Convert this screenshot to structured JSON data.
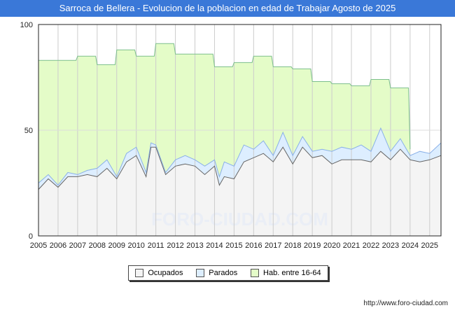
{
  "chart_data": {
    "type": "area",
    "title": "Sarroca de Bellera - Evolucion de la poblacion en edad de Trabajar Agosto de 2025",
    "xlabel": "",
    "ylabel": "",
    "ylim": [
      0,
      100
    ],
    "xlim": [
      2005,
      2025.58
    ],
    "yticks": [
      0,
      50,
      100
    ],
    "xticks": [
      "2005",
      "2006",
      "2007",
      "2008",
      "2009",
      "2010",
      "2011",
      "2012",
      "2013",
      "2014",
      "2015",
      "2016",
      "2017",
      "2018",
      "2019",
      "2020",
      "2021",
      "2022",
      "2023",
      "2024",
      "2025"
    ],
    "legend_position": "bottom-center",
    "grid": true,
    "series": [
      {
        "name": "Hab. entre 16-64",
        "color": "#e4fcc8",
        "line": "#7cbf8c",
        "x": [
          2005,
          2006,
          2007,
          2008,
          2009,
          2010,
          2011,
          2012,
          2013,
          2014,
          2015,
          2016,
          2017,
          2018,
          2019,
          2020,
          2021,
          2022,
          2023,
          2024
        ],
        "values": [
          83,
          83,
          85,
          81,
          88,
          85,
          91,
          86,
          86,
          80,
          82,
          85,
          80,
          79,
          73,
          72,
          71,
          74,
          70,
          null
        ]
      },
      {
        "name": "Parados",
        "color": "#ddeeff",
        "line": "#8ab0e8",
        "x": [
          2005,
          2005.5,
          2006,
          2006.5,
          2007,
          2007.5,
          2008,
          2008.5,
          2009,
          2009.5,
          2010,
          2010.5,
          2010.75,
          2011,
          2011.5,
          2012,
          2012.5,
          2013,
          2013.5,
          2014,
          2014.25,
          2014.5,
          2015,
          2015.5,
          2016,
          2016.5,
          2017,
          2017.5,
          2018,
          2018.5,
          2019,
          2019.5,
          2020,
          2020.5,
          2021,
          2021.5,
          2022,
          2022.5,
          2023,
          2023.5,
          2024,
          2024.5,
          2025,
          2025.58
        ],
        "values": [
          25,
          29,
          24,
          30,
          29,
          31,
          32,
          36,
          28,
          39,
          42,
          30,
          44,
          43,
          30,
          36,
          38,
          36,
          33,
          36,
          28,
          35,
          33,
          43,
          41,
          45,
          38,
          49,
          38,
          47,
          40,
          41,
          40,
          42,
          41,
          43,
          40,
          51,
          40,
          46,
          38,
          40,
          39,
          44
        ]
      },
      {
        "name": "Ocupados",
        "color": "#f4f4f4",
        "line": "#666666",
        "x": [
          2005,
          2005.5,
          2006,
          2006.5,
          2007,
          2007.5,
          2008,
          2008.5,
          2009,
          2009.5,
          2010,
          2010.5,
          2010.75,
          2011,
          2011.5,
          2012,
          2012.5,
          2013,
          2013.5,
          2014,
          2014.25,
          2014.5,
          2015,
          2015.5,
          2016,
          2016.5,
          2017,
          2017.5,
          2018,
          2018.5,
          2019,
          2019.5,
          2020,
          2020.5,
          2021,
          2021.5,
          2022,
          2022.5,
          2023,
          2023.5,
          2024,
          2024.5,
          2025,
          2025.58
        ],
        "values": [
          22,
          27,
          23,
          28,
          28,
          29,
          28,
          32,
          27,
          35,
          38,
          28,
          42,
          42,
          29,
          33,
          34,
          33,
          29,
          33,
          24,
          28,
          27,
          35,
          37,
          39,
          35,
          42,
          34,
          42,
          37,
          38,
          34,
          36,
          36,
          36,
          35,
          40,
          36,
          41,
          36,
          35,
          36,
          38
        ]
      }
    ]
  },
  "legend": {
    "ocupados": "Ocupados",
    "parados": "Parados",
    "hab": "Hab. entre 16-64"
  },
  "watermark": "FORO-CIUDAD.COM",
  "url": "http://www.foro-ciudad.com"
}
